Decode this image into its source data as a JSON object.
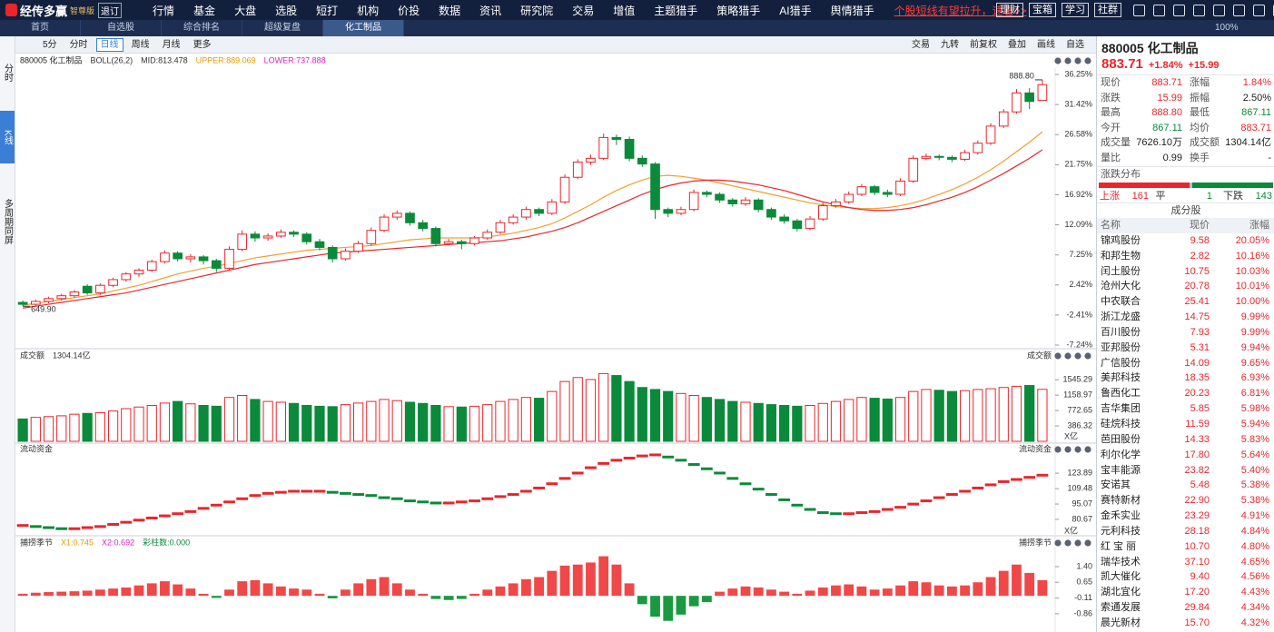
{
  "app": {
    "logo": "经传多赢",
    "edition": "智尊版",
    "badge": "退订",
    "menu": [
      "行情",
      "基金",
      "大盘",
      "选股",
      "短打",
      "机构",
      "价投",
      "数据",
      "资讯",
      "研究院",
      "交易",
      "增值",
      "主题猎手",
      "策略猎手",
      "AI猎手",
      "舆情猎手"
    ],
    "promo": "个股短线有望拉升，速看>>",
    "tools": [
      "理财",
      "宝箱",
      "学习",
      "社群"
    ]
  },
  "tabs": {
    "items": [
      "首页",
      "自选股",
      "综合排名",
      "超级复盘",
      "化工制品"
    ],
    "active": 4,
    "zoom": "100%"
  },
  "toolbar": {
    "periods": [
      "5分",
      "分时",
      "日线",
      "周线",
      "月线",
      "更多"
    ],
    "active": 2,
    "actions": [
      "交易",
      "九转",
      "前复权",
      "叠加",
      "画线",
      "自选"
    ]
  },
  "side_tabs": [
    "分时",
    "K线",
    "多周期同屏"
  ],
  "chart_data": [
    {
      "type": "candlestick",
      "title": "880005 化工制品",
      "indicator": "BOLL(26,2)",
      "legend": [
        {
          "text": "MID:813.478",
          "color": "#333333"
        },
        {
          "text": "UPPER:889.069",
          "color": "#e89a00"
        },
        {
          "text": "LOWER:737.888",
          "color": "#e020c0"
        }
      ],
      "up_color": "#e8262b",
      "down_color": "#0a8a3a",
      "candles": [
        [
          654,
          656,
          649.9,
          652
        ],
        [
          652,
          657,
          650,
          655
        ],
        [
          655,
          660,
          653,
          658
        ],
        [
          658,
          663,
          656,
          661
        ],
        [
          661,
          667,
          659,
          665
        ],
        [
          671,
          673,
          662,
          664
        ],
        [
          664,
          674,
          662,
          672
        ],
        [
          672,
          680,
          670,
          678
        ],
        [
          678,
          686,
          676,
          684
        ],
        [
          684,
          690,
          681,
          688
        ],
        [
          688,
          699,
          686,
          697
        ],
        [
          697,
          709,
          695,
          706
        ],
        [
          706,
          708,
          697,
          700
        ],
        [
          700,
          705,
          696,
          702
        ],
        [
          702,
          704,
          694,
          698
        ],
        [
          698,
          700,
          686,
          690
        ],
        [
          690,
          713,
          688,
          710
        ],
        [
          710,
          730,
          708,
          726
        ],
        [
          726,
          729,
          718,
          722
        ],
        [
          722,
          727,
          719,
          724
        ],
        [
          724,
          731,
          722,
          728
        ],
        [
          728,
          730,
          723,
          726
        ],
        [
          726,
          728,
          715,
          718
        ],
        [
          718,
          721,
          709,
          712
        ],
        [
          712,
          714,
          696,
          700
        ],
        [
          700,
          711,
          698,
          708
        ],
        [
          708,
          719,
          706,
          716
        ],
        [
          716,
          733,
          714,
          730
        ],
        [
          730,
          747,
          728,
          744
        ],
        [
          744,
          751,
          741,
          748
        ],
        [
          748,
          750,
          735,
          738
        ],
        [
          738,
          741,
          729,
          732
        ],
        [
          732,
          734,
          713,
          716
        ],
        [
          716,
          721,
          714,
          718
        ],
        [
          718,
          720,
          710,
          716
        ],
        [
          716,
          724,
          714,
          722
        ],
        [
          722,
          731,
          720,
          728
        ],
        [
          728,
          741,
          726,
          738
        ],
        [
          738,
          747,
          736,
          744
        ],
        [
          744,
          755,
          741,
          752
        ],
        [
          752,
          754,
          745,
          748
        ],
        [
          748,
          763,
          746,
          760
        ],
        [
          760,
          789,
          758,
          786
        ],
        [
          786,
          805,
          784,
          802
        ],
        [
          802,
          810,
          799,
          806
        ],
        [
          806,
          832,
          804,
          828
        ],
        [
          828,
          831,
          820,
          826
        ],
        [
          826,
          829,
          803,
          806
        ],
        [
          806,
          809,
          797,
          800
        ],
        [
          800,
          802,
          742,
          752
        ],
        [
          752,
          754,
          744,
          748
        ],
        [
          748,
          755,
          746,
          752
        ],
        [
          752,
          773,
          750,
          770
        ],
        [
          770,
          772,
          765,
          768
        ],
        [
          768,
          770,
          759,
          762
        ],
        [
          762,
          764,
          755,
          758
        ],
        [
          758,
          765,
          756,
          762
        ],
        [
          762,
          764,
          749,
          752
        ],
        [
          752,
          754,
          741,
          744
        ],
        [
          744,
          747,
          737,
          740
        ],
        [
          740,
          742,
          729,
          732
        ],
        [
          732,
          745,
          730,
          742
        ],
        [
          742,
          759,
          740,
          756
        ],
        [
          756,
          763,
          754,
          760
        ],
        [
          760,
          771,
          758,
          768
        ],
        [
          768,
          779,
          766,
          776
        ],
        [
          776,
          778,
          767,
          770
        ],
        [
          770,
          773,
          765,
          768
        ],
        [
          768,
          785,
          766,
          782
        ],
        [
          782,
          809,
          780,
          806
        ],
        [
          806,
          811,
          804,
          808
        ],
        [
          808,
          810,
          804,
          807
        ],
        [
          807,
          809,
          802,
          805
        ],
        [
          805,
          815,
          803,
          812
        ],
        [
          812,
          825,
          810,
          822
        ],
        [
          822,
          843,
          820,
          840
        ],
        [
          840,
          858,
          838,
          855
        ],
        [
          855,
          879,
          853,
          875
        ],
        [
          875,
          880,
          858,
          866
        ],
        [
          867.11,
          888.8,
          867.11,
          883.71
        ]
      ],
      "lines": [
        {
          "color": "#f0a030",
          "values": [
            651,
            653,
            655,
            657,
            659,
            661,
            663,
            666,
            669,
            672,
            676,
            680,
            684,
            687,
            690,
            692,
            695,
            698,
            701,
            703,
            705,
            707,
            709,
            710,
            711,
            712,
            713,
            714,
            716,
            718,
            720,
            721,
            722,
            722,
            722,
            722,
            723,
            725,
            727,
            730,
            733,
            737,
            743,
            750,
            757,
            765,
            772,
            778,
            783,
            787,
            788,
            787,
            785,
            783,
            780,
            777,
            774,
            771,
            768,
            765,
            762,
            759,
            757,
            755,
            754,
            753,
            753,
            754,
            756,
            759,
            763,
            768,
            773,
            779,
            786,
            794,
            803,
            813,
            823,
            834
          ]
        },
        {
          "color": "#e8262b",
          "values": [
            648,
            650,
            652,
            654,
            656,
            658,
            660,
            662,
            664,
            667,
            670,
            673,
            676,
            679,
            682,
            685,
            688,
            691,
            694,
            696,
            698,
            700,
            702,
            704,
            706,
            707,
            708,
            709,
            710,
            711,
            712,
            713,
            714,
            715,
            716,
            717,
            718,
            719,
            721,
            723,
            726,
            729,
            733,
            738,
            744,
            750,
            756,
            762,
            768,
            773,
            777,
            780,
            782,
            783,
            783,
            782,
            780,
            778,
            775,
            772,
            768,
            764,
            760,
            757,
            754,
            752,
            751,
            751,
            752,
            754,
            757,
            761,
            765,
            770,
            776,
            783,
            790,
            798,
            806,
            815
          ]
        }
      ],
      "annotations": [
        {
          "value": 888.8,
          "label": "888.80"
        },
        {
          "value": 649.9,
          "label": "649.90"
        }
      ],
      "ylim": [
        608.97,
        894.48
      ],
      "yticks": [
        {
          "value": 894.48,
          "label": "36.25%"
        },
        {
          "value": 862.77,
          "label": "31.42%"
        },
        {
          "value": 831.0,
          "label": "26.58%"
        },
        {
          "value": 799.29,
          "label": "21.75%"
        },
        {
          "value": 767.58,
          "label": "16.92%"
        },
        {
          "value": 735.87,
          "label": "12.09%"
        },
        {
          "value": 704.1,
          "label": "7.25%"
        },
        {
          "value": 672.39,
          "label": "2.42%"
        },
        {
          "value": 640.68,
          "label": "-2.41%"
        },
        {
          "value": 608.97,
          "label": "-7.24%"
        }
      ]
    },
    {
      "type": "bar",
      "title": "成交额",
      "subtitle": "1304.14亿",
      "right_title": "成交额",
      "unit": "X亿",
      "values": [
        560,
        600,
        620,
        640,
        680,
        700,
        720,
        760,
        820,
        860,
        900,
        960,
        1000,
        940,
        900,
        880,
        1100,
        1150,
        1050,
        1000,
        980,
        950,
        900,
        880,
        870,
        920,
        960,
        1000,
        1050,
        1020,
        980,
        950,
        900,
        870,
        860,
        880,
        920,
        1000,
        1050,
        1100,
        1080,
        1250,
        1500,
        1600,
        1550,
        1700,
        1650,
        1500,
        1350,
        1300,
        1250,
        1200,
        1150,
        1100,
        1050,
        1000,
        980,
        950,
        920,
        900,
        880,
        900,
        950,
        1000,
        1050,
        1100,
        1080,
        1060,
        1100,
        1250,
        1300,
        1280,
        1250,
        1270,
        1300,
        1320,
        1350,
        1380,
        1400,
        1304.14
      ],
      "ylim": [
        0,
        2000
      ],
      "yticks": [
        386.32,
        772.65,
        1158.97,
        1545.29
      ]
    },
    {
      "type": "flow",
      "title": "流动资金",
      "right_title": "流动资金",
      "unit": "X亿",
      "values": [
        75,
        74,
        73,
        72,
        72,
        73,
        74,
        76,
        78,
        80,
        82,
        84,
        86,
        88,
        91,
        94,
        97,
        100,
        103,
        105,
        106,
        107,
        107,
        107,
        106,
        105,
        104,
        103,
        101,
        100,
        98,
        97,
        96,
        96,
        97,
        98,
        100,
        102,
        104,
        107,
        110,
        114,
        119,
        124,
        129,
        133,
        136,
        138,
        140,
        141,
        139,
        136,
        132,
        128,
        124,
        119,
        114,
        109,
        104,
        99,
        94,
        90,
        87,
        86,
        86,
        87,
        88,
        90,
        92,
        95,
        98,
        101,
        104,
        107,
        110,
        113,
        116,
        118,
        120,
        122
      ],
      "ylim": [
        65.4,
        143.5
      ],
      "yticks": [
        80.67,
        95.07,
        109.48,
        123.89
      ]
    },
    {
      "type": "histogram",
      "title": "捕捞季节",
      "right_title": "捕捞季节",
      "legend": [
        {
          "text": "X1:0.745",
          "color": "#e89a00"
        },
        {
          "text": "X2:0.692",
          "color": "#e020c0"
        },
        {
          "text": "彩柱数:0.000",
          "color": "#0a8a3a"
        }
      ],
      "values": [
        0.1,
        0.15,
        0.18,
        0.2,
        0.22,
        0.25,
        0.3,
        0.35,
        0.4,
        0.5,
        0.6,
        0.7,
        0.55,
        0.35,
        0.1,
        -0.1,
        0.3,
        0.7,
        0.75,
        0.6,
        0.45,
        0.35,
        0.3,
        0.1,
        -0.12,
        0.3,
        0.6,
        0.8,
        0.9,
        0.6,
        0.3,
        0.1,
        -0.15,
        -0.2,
        -0.15,
        0.1,
        0.3,
        0.45,
        0.6,
        0.8,
        0.9,
        1.2,
        1.45,
        1.5,
        1.6,
        1.9,
        1.5,
        0.6,
        -0.4,
        -1.0,
        -1.2,
        -0.9,
        -0.5,
        -0.3,
        0.2,
        0.35,
        0.45,
        0.4,
        0.3,
        0.2,
        0.1,
        0.25,
        0.4,
        0.5,
        0.55,
        0.45,
        0.3,
        0.35,
        0.5,
        0.7,
        0.65,
        0.5,
        0.45,
        0.5,
        0.65,
        0.9,
        1.2,
        1.5,
        1.1,
        0.75
      ],
      "ylim": [
        -1.56,
        2.36
      ],
      "yticks": [
        {
          "value": 1.4,
          "label": "1.40"
        },
        0.65,
        -0.11,
        -0.86
      ]
    }
  ],
  "quote": {
    "name": "880005 化工制品",
    "price": "883.71",
    "change_pct": "+1.84%",
    "change": "+15.99",
    "rows": [
      [
        "现价",
        "883.71",
        "涨幅",
        "1.84%"
      ],
      [
        "涨跌",
        "15.99",
        "振幅",
        "2.50%"
      ],
      [
        "最高",
        "888.80",
        "最低",
        "867.11"
      ],
      [
        "今开",
        "867.11",
        "均价",
        "883.71"
      ],
      [
        "成交量",
        "7626.10万",
        "成交额",
        "1304.14亿"
      ],
      [
        "量比",
        "0.99",
        "换手",
        "-"
      ]
    ],
    "value_colors": [
      [
        "#e8262b",
        "#e8262b"
      ],
      [
        "#e8262b",
        "#222222"
      ],
      [
        "#e8262b",
        "#0a8a3a"
      ],
      [
        "#0a8a3a",
        "#e8262b"
      ],
      [
        "#222222",
        "#222222"
      ],
      [
        "#222222",
        "#222222"
      ]
    ]
  },
  "distribution": {
    "title": "涨跌分布",
    "up_label": "上涨",
    "up": 161,
    "flat_label": "平",
    "flat": 1,
    "down_label": "下跌",
    "down": 143
  },
  "components": {
    "title": "成分股",
    "headers": [
      "名称",
      "现价",
      "涨幅"
    ],
    "rows": [
      [
        "锦鸡股份",
        "9.58",
        "20.05%"
      ],
      [
        "和邦生物",
        "2.82",
        "10.16%"
      ],
      [
        "闰土股份",
        "10.75",
        "10.03%"
      ],
      [
        "沧州大化",
        "20.78",
        "10.01%"
      ],
      [
        "中农联合",
        "25.41",
        "10.00%"
      ],
      [
        "浙江龙盛",
        "14.75",
        "9.99%"
      ],
      [
        "百川股份",
        "7.93",
        "9.99%"
      ],
      [
        "亚邦股份",
        "5.31",
        "9.94%"
      ],
      [
        "广信股份",
        "14.09",
        "9.65%"
      ],
      [
        "美邦科技",
        "18.35",
        "6.93%"
      ],
      [
        "鲁西化工",
        "20.23",
        "6.81%"
      ],
      [
        "吉华集团",
        "5.85",
        "5.98%"
      ],
      [
        "硅烷科技",
        "11.59",
        "5.94%"
      ],
      [
        "芭田股份",
        "14.33",
        "5.83%"
      ],
      [
        "利尔化学",
        "17.80",
        "5.64%"
      ],
      [
        "宝丰能源",
        "23.82",
        "5.40%"
      ],
      [
        "安诺其",
        "5.48",
        "5.38%"
      ],
      [
        "赛特新材",
        "22.90",
        "5.38%"
      ],
      [
        "金禾实业",
        "23.29",
        "4.91%"
      ],
      [
        "元利科技",
        "28.18",
        "4.84%"
      ],
      [
        "红 宝 丽",
        "10.70",
        "4.80%"
      ],
      [
        "瑞华技术",
        "37.10",
        "4.65%"
      ],
      [
        "凯大催化",
        "9.40",
        "4.56%"
      ],
      [
        "湖北宜化",
        "17.20",
        "4.43%"
      ],
      [
        "索通发展",
        "29.84",
        "4.34%"
      ],
      [
        "晨光新材",
        "15.70",
        "4.32%"
      ]
    ]
  }
}
